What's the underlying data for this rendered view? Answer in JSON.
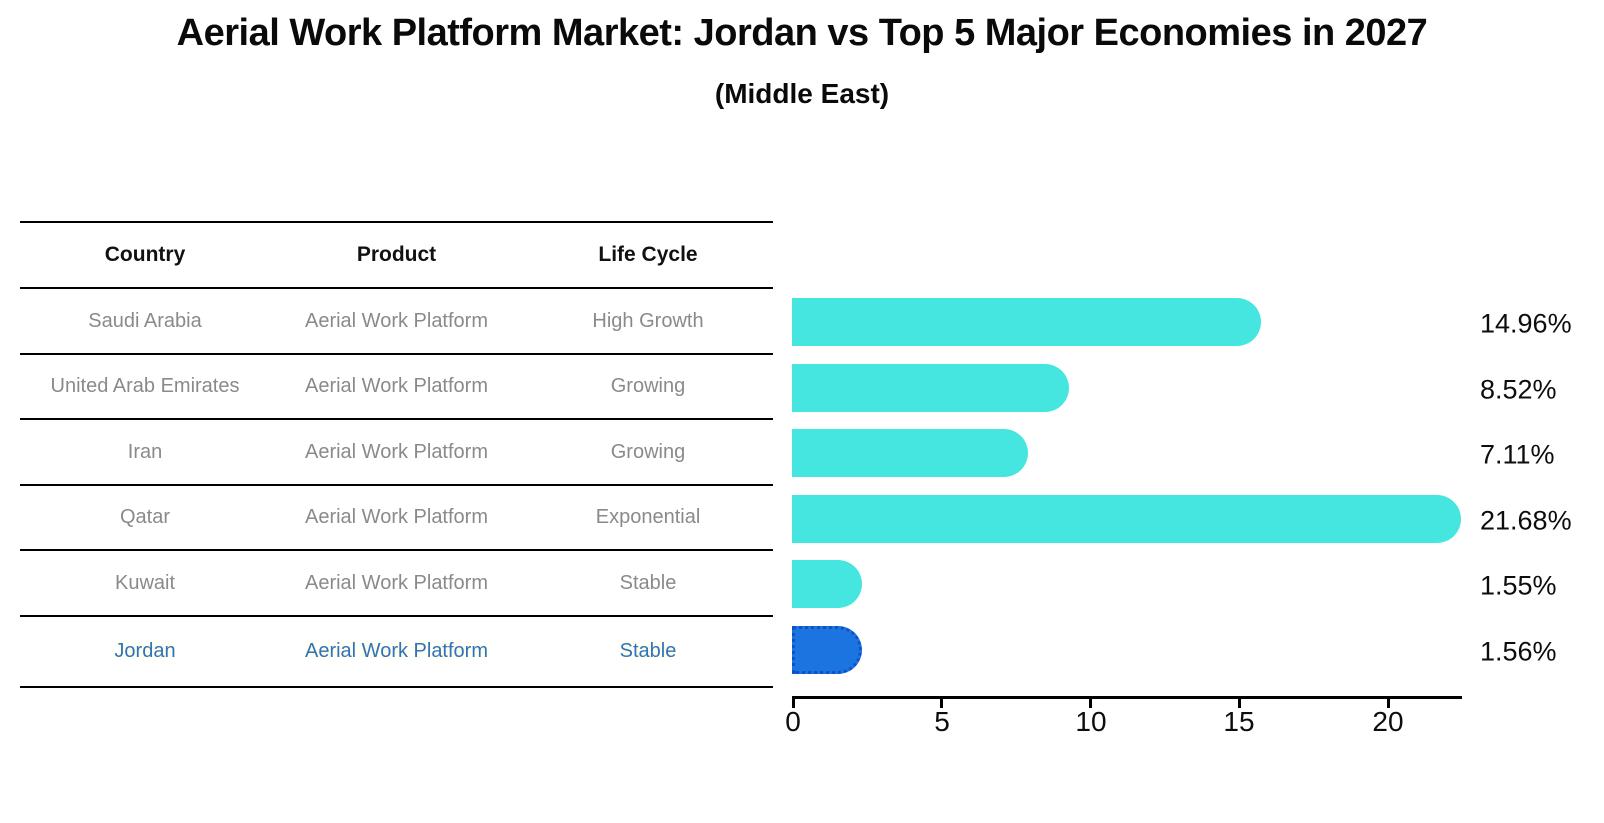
{
  "chart": {
    "title": "Aerial Work Platform Market: Jordan vs Top 5 Major Economies in 2027",
    "subtitle": "(Middle East)"
  },
  "colors": {
    "bar_default": "#45E6E0",
    "bar_highlight": "#1B74E0",
    "bar_highlight_border": "#0D52C8",
    "highlight_text": "#2E74BD",
    "table_text": "#8A8A8A",
    "header_text": "#111111",
    "axis": "#000000"
  },
  "table": {
    "headers": [
      "Country",
      "Product",
      "Life Cycle"
    ],
    "rows": [
      {
        "country": "Saudi Arabia",
        "product": "Aerial Work Platform",
        "life_cycle": "High Growth",
        "highlight": false
      },
      {
        "country": "United Arab Emirates",
        "product": "Aerial Work Platform",
        "life_cycle": "Growing",
        "highlight": false
      },
      {
        "country": "Iran",
        "product": "Aerial Work Platform",
        "life_cycle": "Growing",
        "highlight": false
      },
      {
        "country": "Qatar",
        "product": "Aerial Work Platform",
        "life_cycle": "Exponential",
        "highlight": false
      },
      {
        "country": "Kuwait",
        "product": "Aerial Work Platform",
        "life_cycle": "Stable",
        "highlight": false
      },
      {
        "country": "Jordan",
        "product": "Aerial Work Platform",
        "life_cycle": "Stable",
        "highlight": true
      }
    ]
  },
  "chart_data": {
    "type": "bar",
    "orientation": "horizontal",
    "title": "Aerial Work Platform Market: Jordan vs Top 5 Major Economies in 2027 (Middle East)",
    "categories": [
      "Saudi Arabia",
      "United Arab Emirates",
      "Iran",
      "Qatar",
      "Kuwait",
      "Jordan"
    ],
    "values": [
      14.96,
      8.52,
      7.11,
      21.68,
      1.55,
      1.56
    ],
    "value_labels": [
      "14.96%",
      "8.52%",
      "7.11%",
      "21.68%",
      "1.55%",
      "1.56%"
    ],
    "unit": "percent",
    "highlighted_category": "Jordan",
    "xticks": [
      0,
      5,
      10,
      15,
      20
    ],
    "xlim": [
      0,
      22.5
    ],
    "grid": false,
    "legend": false
  }
}
